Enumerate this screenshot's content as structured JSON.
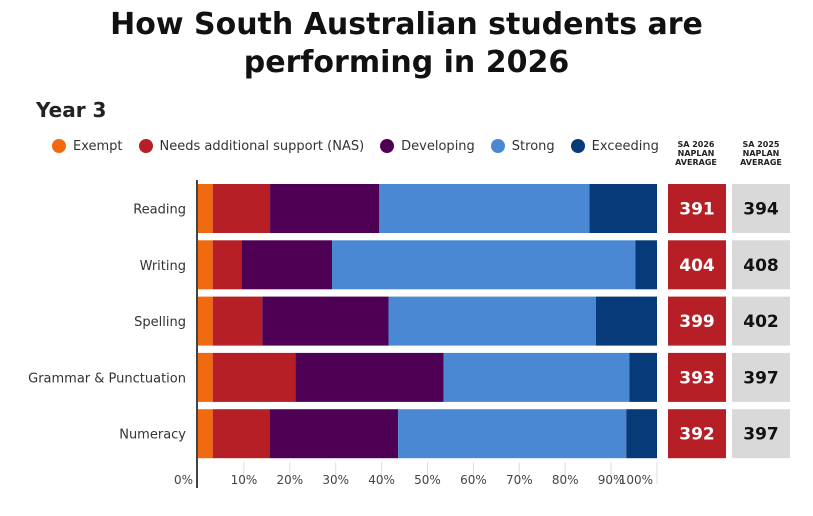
{
  "title_line1": "How South Australian students are",
  "title_line2": "performing in 2026",
  "subtitle": "Year 3",
  "legend": [
    {
      "label": "Exempt",
      "color": "#f26a10"
    },
    {
      "label": "Needs additional support (NAS)",
      "color": "#b51f25"
    },
    {
      "label": "Developing",
      "color": "#4e0054"
    },
    {
      "label": "Strong",
      "color": "#4a88d4"
    },
    {
      "label": "Exceeding",
      "color": "#063a78"
    }
  ],
  "col_heads": {
    "sa2026": [
      "SA 2026",
      "NAPLAN",
      "AVERAGE"
    ],
    "sa2025": [
      "SA 2025",
      "NAPLAN",
      "AVERAGE"
    ]
  },
  "colors": {
    "avg2026_bg": "#b51f25",
    "avg2026_text": "#ffffff",
    "avg2025_bg": "#d9d9d9",
    "avg2025_text": "#111111"
  },
  "chart_data": {
    "type": "bar",
    "orientation": "horizontal",
    "stacked": true,
    "categories": [
      "Reading",
      "Writing",
      "Spelling",
      "Grammar & Punctuation",
      "Numeracy"
    ],
    "series": [
      {
        "name": "Exempt",
        "values": [
          3.2,
          3.2,
          3.2,
          3.2,
          3.2
        ]
      },
      {
        "name": "Needs additional support (NAS)",
        "values": [
          12.5,
          6.3,
          10.8,
          18.0,
          12.4
        ]
      },
      {
        "name": "Developing",
        "values": [
          23.8,
          19.7,
          27.5,
          32.3,
          28.0
        ]
      },
      {
        "name": "Strong",
        "values": [
          45.8,
          66.1,
          45.2,
          40.5,
          49.7
        ]
      },
      {
        "name": "Exceeding",
        "values": [
          14.7,
          4.7,
          13.3,
          6.0,
          6.7
        ]
      }
    ],
    "xlim": [
      0,
      100
    ],
    "xticks": [
      "0%",
      "10%",
      "20%",
      "30%",
      "40%",
      "50%",
      "60%",
      "70%",
      "80%",
      "90%",
      "100%"
    ],
    "sa_2026_average": [
      391,
      404,
      399,
      393,
      392
    ],
    "sa_2025_average": [
      394,
      408,
      402,
      397,
      397
    ],
    "legend_position": "top"
  }
}
